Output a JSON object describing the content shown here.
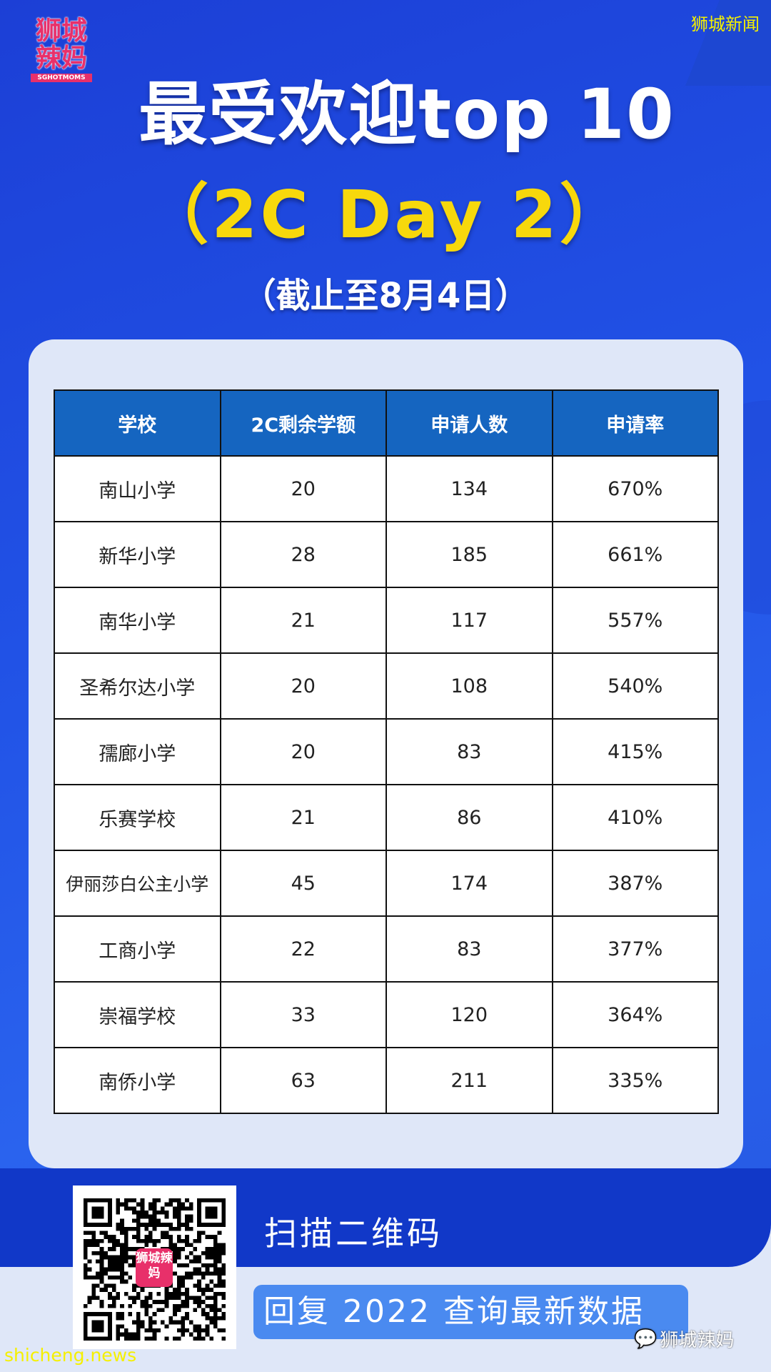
{
  "logo": {
    "text_line1": "狮城",
    "text_line2": "辣妈",
    "subtext": "SGHOTMOMS"
  },
  "watermark_top": "狮城新闻",
  "title": "最受欢迎top 10",
  "subtitle": "（2C Day 2）",
  "date_note": "（截止至8月4日）",
  "table": {
    "headers": [
      "学校",
      "2C剩余学额",
      "申请人数",
      "申请率"
    ],
    "rows": [
      [
        "南山小学",
        "20",
        "134",
        "670%"
      ],
      [
        "新华小学",
        "28",
        "185",
        "661%"
      ],
      [
        "南华小学",
        "21",
        "117",
        "557%"
      ],
      [
        "圣希尔达小学",
        "20",
        "108",
        "540%"
      ],
      [
        "孺廊小学",
        "20",
        "83",
        "415%"
      ],
      [
        "乐赛学校",
        "21",
        "86",
        "410%"
      ],
      [
        "伊丽莎白公主小学",
        "45",
        "174",
        "387%"
      ],
      [
        "工商小学",
        "22",
        "83",
        "377%"
      ],
      [
        "崇福学校",
        "33",
        "120",
        "364%"
      ],
      [
        "南侨小学",
        "63",
        "211",
        "335%"
      ]
    ]
  },
  "qr": {
    "logo_text": "狮城辣妈"
  },
  "scan_label": "扫描二维码",
  "reply_label": "回复 2022 查询最新数据",
  "watermark_bottom": "shicheng.news",
  "watermark_wechat": "狮城辣妈",
  "colors": {
    "background": "#2152e6",
    "title_yellow": "#f7d80c",
    "table_header": "#1565c0",
    "logo_pink": "#e8306a",
    "reply_button": "#4a8af0"
  }
}
